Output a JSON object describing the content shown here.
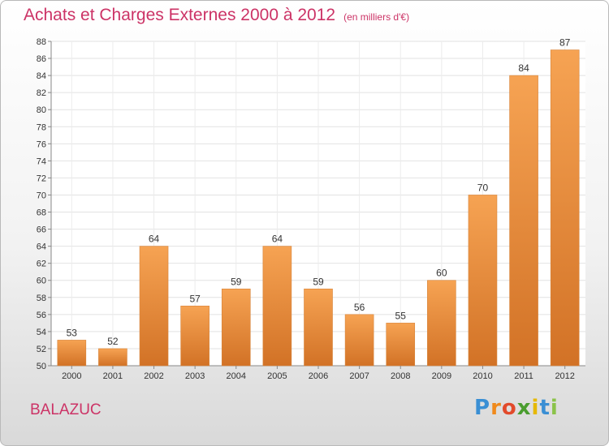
{
  "chart_data": {
    "type": "bar",
    "title": "Achats et Charges Externes 2000 à 2012",
    "subtitle": "(en milliers d'€)",
    "categories": [
      "2000",
      "2001",
      "2002",
      "2003",
      "2004",
      "2005",
      "2006",
      "2007",
      "2008",
      "2009",
      "2010",
      "2011",
      "2012"
    ],
    "values": [
      53,
      52,
      64,
      57,
      59,
      64,
      59,
      56,
      55,
      60,
      70,
      84,
      87
    ],
    "ylim": [
      50,
      88
    ],
    "yticks": [
      "50",
      "52",
      "54",
      "56",
      "58",
      "60",
      "62",
      "64",
      "66",
      "68",
      "70",
      "72",
      "74",
      "76",
      "78",
      "80",
      "82",
      "84",
      "86",
      "88"
    ],
    "grid": true,
    "bar_color_top": "#f6a353",
    "bar_color_bottom": "#d27226",
    "title_color": "#cc3366"
  },
  "footer": {
    "commune": "BALAZUC",
    "logo_letters": [
      "P",
      "r",
      "o",
      "x",
      "i",
      "t",
      "i"
    ],
    "logo_colors": [
      "#3a8fd4",
      "#f08a1c",
      "#e24a2b",
      "#4a9d2f",
      "#e6b800",
      "#3a8fd4",
      "#8bc34a"
    ]
  }
}
